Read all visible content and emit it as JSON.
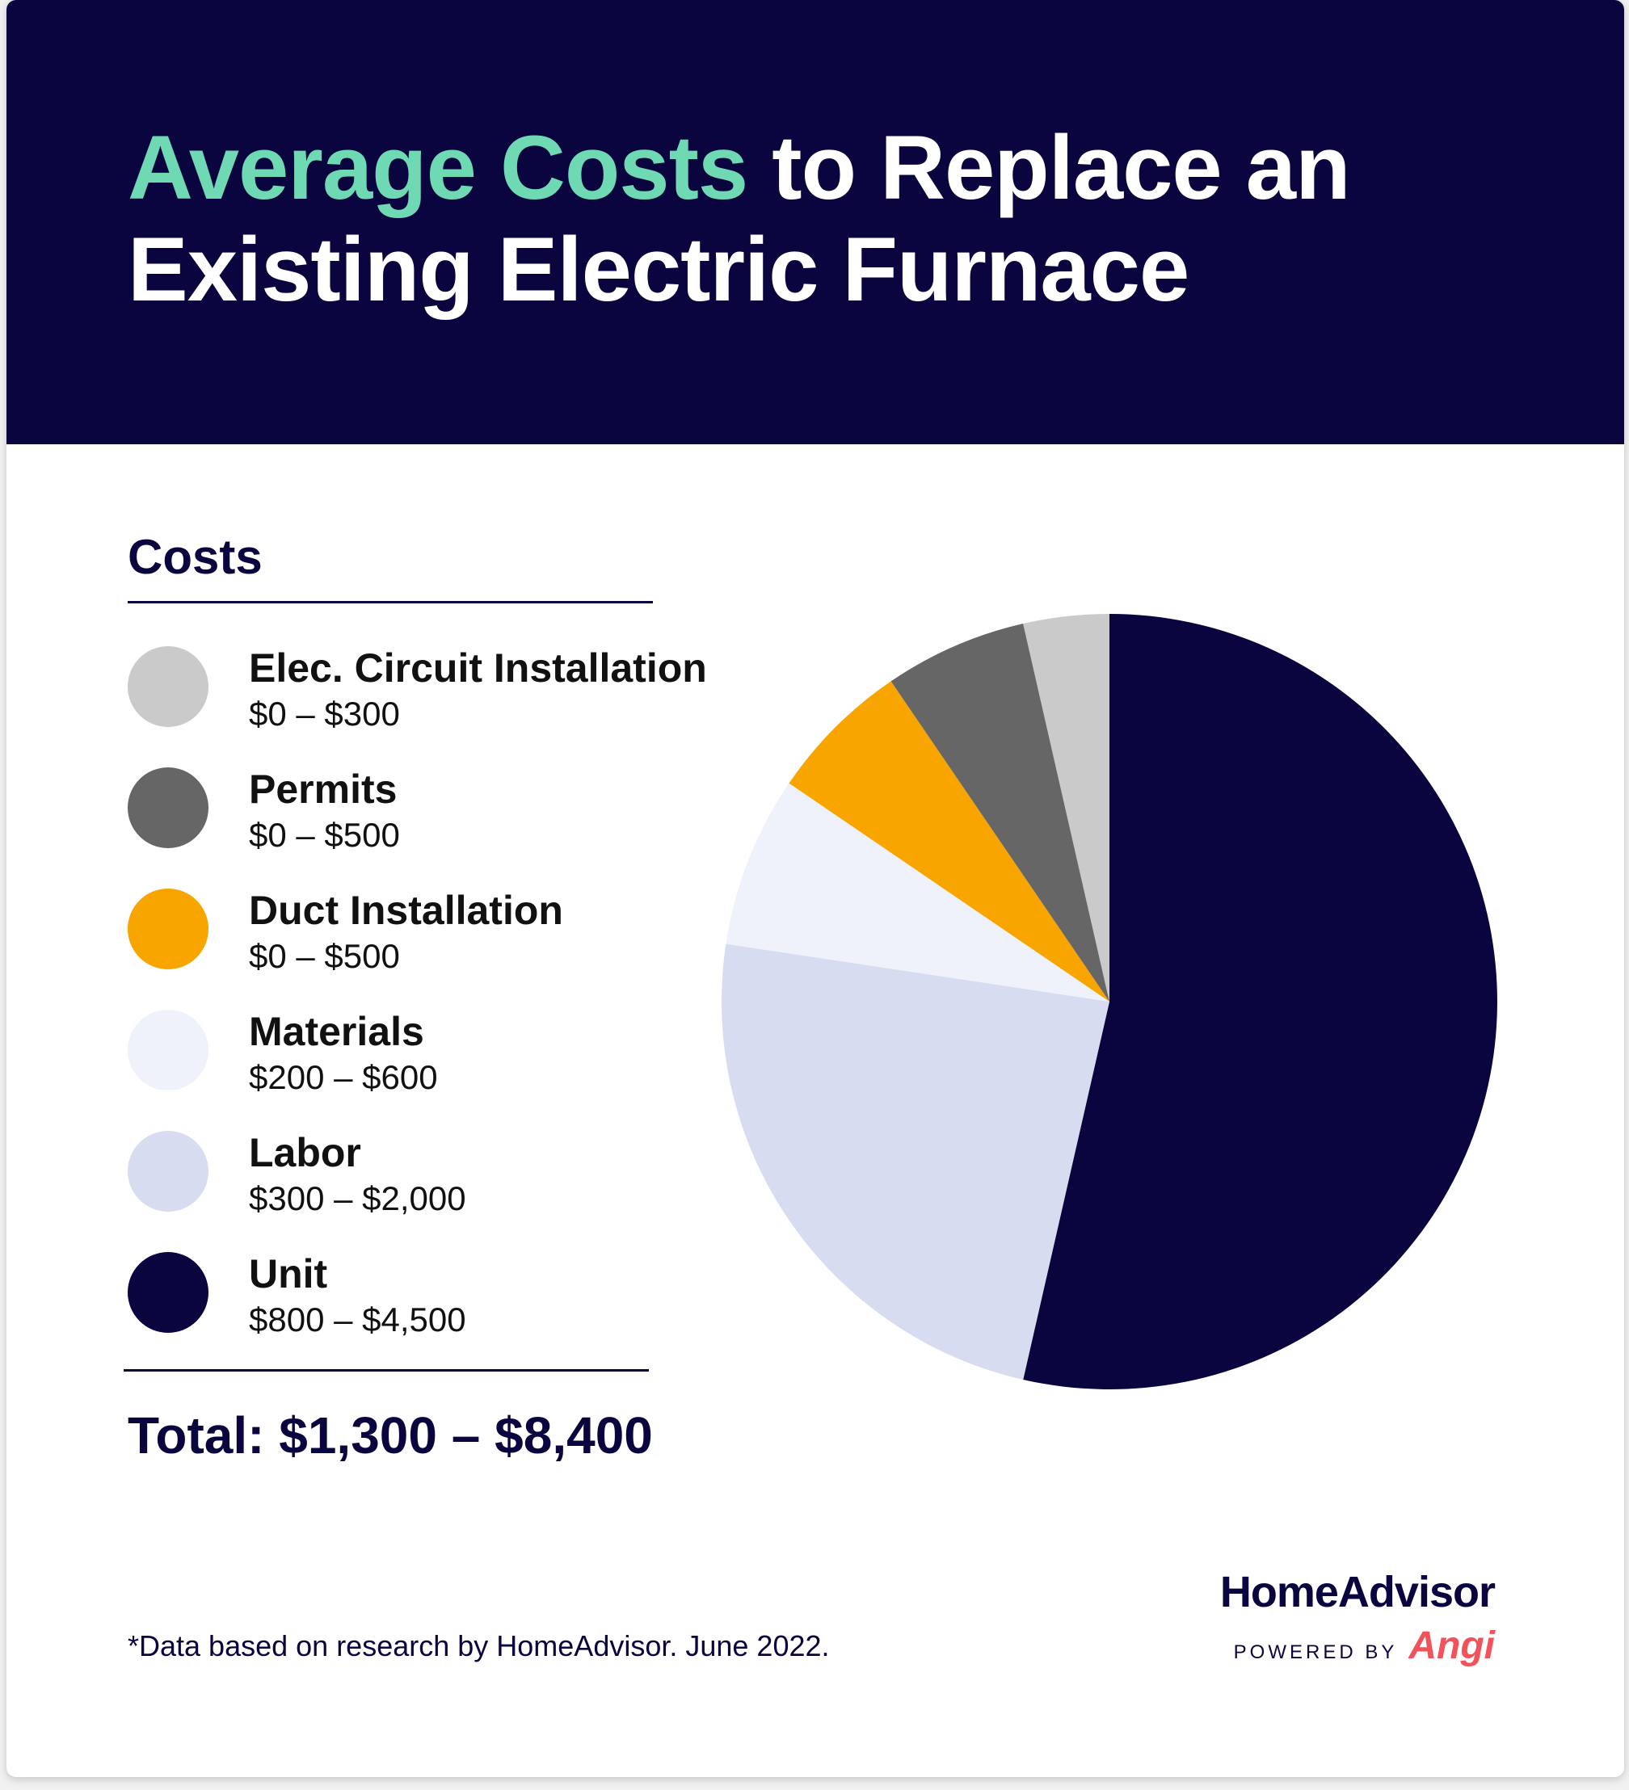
{
  "title": {
    "accent": "Average Costs",
    "rest_line1": " to Replace an",
    "line2": "Existing Electric Furnace"
  },
  "legend_heading": "Costs",
  "chart_data": {
    "type": "pie",
    "title": "Average Costs to Replace an Existing Electric Furnace",
    "start_angle_deg": 0,
    "direction": "clockwise",
    "slices": [
      {
        "label": "Unit",
        "range": "$800 – $4,500",
        "value": 4500,
        "color": "#0a053e"
      },
      {
        "label": "Labor",
        "range": "$300 – $2,000",
        "value": 2000,
        "color": "#d7dcf0"
      },
      {
        "label": "Materials",
        "range": "$200 – $600",
        "value": 600,
        "color": "#eff2fb"
      },
      {
        "label": "Duct Installation",
        "range": "$0 – $500",
        "value": 500,
        "color": "#f8a500"
      },
      {
        "label": "Permits",
        "range": "$0 – $500",
        "value": 500,
        "color": "#666666"
      },
      {
        "label": "Elec. Circuit Installation",
        "range": "$0 – $300",
        "value": 300,
        "color": "#cacaca"
      }
    ]
  },
  "legend": [
    {
      "label": "Elec. Circuit Installation",
      "range": "$0 – $300",
      "color": "#cacaca"
    },
    {
      "label": "Permits",
      "range": "$0 – $500",
      "color": "#666666"
    },
    {
      "label": "Duct Installation",
      "range": "$0 – $500",
      "color": "#f8a500"
    },
    {
      "label": "Materials",
      "range": "$200 – $600",
      "color": "#eff2fb"
    },
    {
      "label": "Labor",
      "range": "$300 – $2,000",
      "color": "#d7dcf0"
    },
    {
      "label": "Unit",
      "range": "$800 – $4,500",
      "color": "#0a053e"
    }
  ],
  "total": "Total: $1,300 – $8,400",
  "footnote": "*Data based on research by HomeAdvisor. June 2022.",
  "brand": {
    "name": "HomeAdvisor",
    "powered_by": "POWERED BY",
    "partner": "Angi"
  },
  "colors": {
    "navy": "#0a053e",
    "accent": "#6fd9b4",
    "angi": "#f4525b"
  }
}
